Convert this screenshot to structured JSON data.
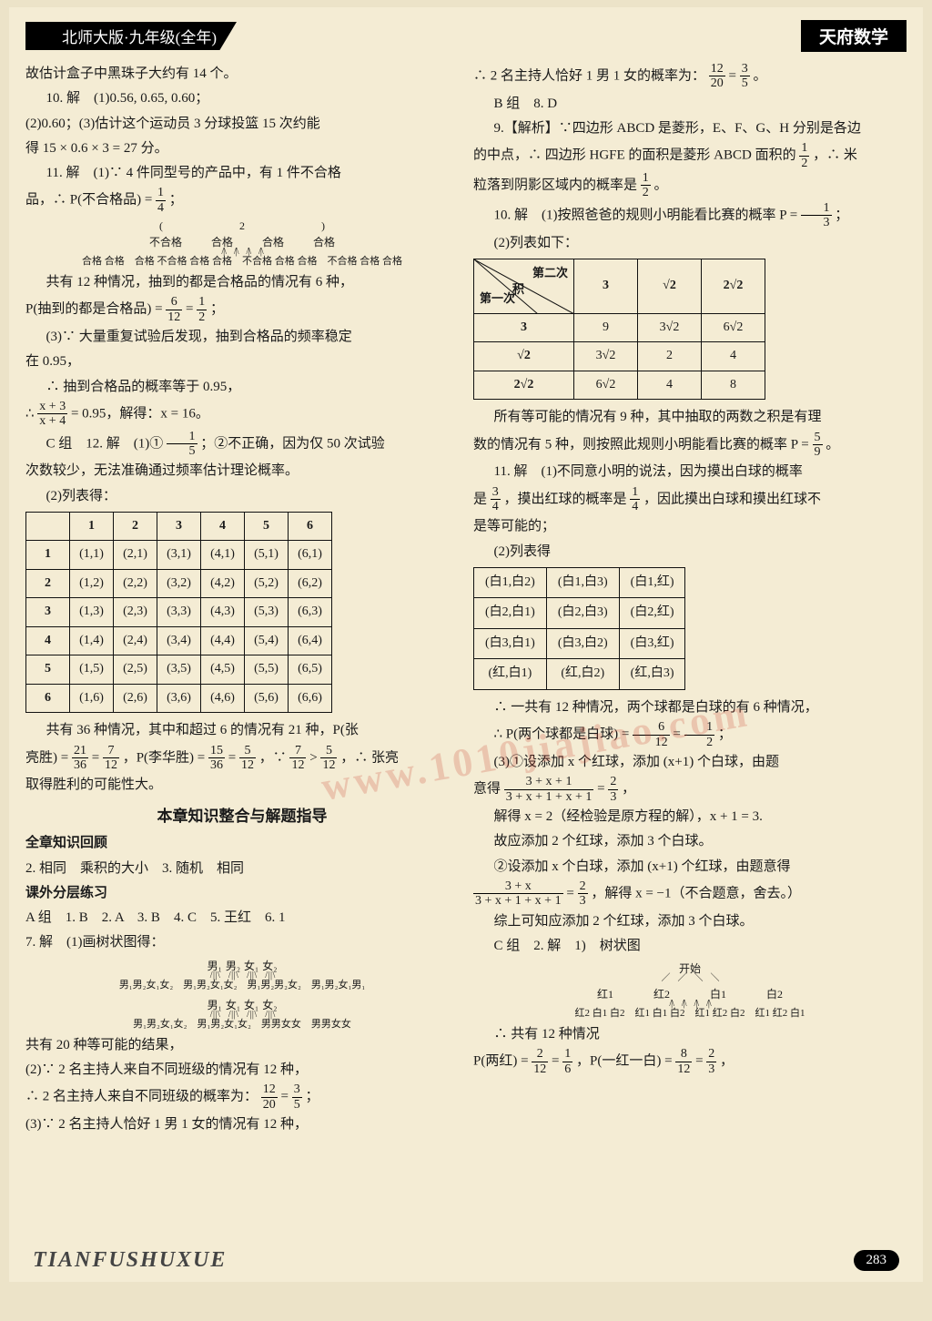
{
  "header": {
    "left": "北师大版·九年级(全年)",
    "right": "天府数学"
  },
  "footer": {
    "brand": "TIANFUSHUXUE",
    "page": "283"
  },
  "watermark": "www.1010jiajiao.com",
  "colors": {
    "page_bg": "#f4ecd4",
    "body_bg": "#ece3c8",
    "text": "#1a1a1a",
    "border": "#111111",
    "watermark": "rgba(200,60,40,0.22)"
  },
  "left": {
    "l1": "故估计盒子中黑珠子大约有 14 个。",
    "l2": "10. 解　(1)0.56, 0.65, 0.60；",
    "l3": "(2)0.60；(3)估计这个运动员 3 分球投篮 15 次约能",
    "l4": "得 15 × 0.6 × 3 = 27 分。",
    "l5": "11. 解　(1)∵ 4 件同型号的产品中，有 1 件不合格",
    "l6a": "品，∴ P(不合格品) = ",
    "l6frac": {
      "n": "1",
      "d": "4"
    },
    "l6b": "；",
    "tree1": {
      "root_cols": [
        "不合格",
        "合格",
        "合格",
        "合格"
      ],
      "leaf": "合格 合格　合格 不合格 合格 合格　不合格 合格 合格　不合格 合格 合格"
    },
    "l7": "共有 12 种情况，抽到的都是合格品的情况有 6 种，",
    "l8a": "P(抽到的都是合格品) = ",
    "l8f1": {
      "n": "6",
      "d": "12"
    },
    "l8m": " = ",
    "l8f2": {
      "n": "1",
      "d": "2"
    },
    "l8b": "；",
    "l9": "(3)∵ 大量重复试验后发现，抽到合格品的频率稳定",
    "l10": "在 0.95，",
    "l11": "∴ 抽到合格品的概率等于 0.95，",
    "l12a": "∴ ",
    "l12f": {
      "n": "x + 3",
      "d": "x + 4"
    },
    "l12b": " = 0.95，解得：x = 16。",
    "l13a": "C 组　12. 解　(1)① ",
    "l13f": {
      "n": "1",
      "d": "5"
    },
    "l13b": "；②不正确，因为仅 50 次试验",
    "l14": "次数较少，无法准确通过频率估计理论概率。",
    "l15": "(2)列表得：",
    "pair_table": {
      "headers": [
        "",
        "1",
        "2",
        "3",
        "4",
        "5",
        "6"
      ],
      "rows": [
        [
          "1",
          "(1,1)",
          "(2,1)",
          "(3,1)",
          "(4,1)",
          "(5,1)",
          "(6,1)"
        ],
        [
          "2",
          "(1,2)",
          "(2,2)",
          "(3,2)",
          "(4,2)",
          "(5,2)",
          "(6,2)"
        ],
        [
          "3",
          "(1,3)",
          "(2,3)",
          "(3,3)",
          "(4,3)",
          "(5,3)",
          "(6,3)"
        ],
        [
          "4",
          "(1,4)",
          "(2,4)",
          "(3,4)",
          "(4,4)",
          "(5,4)",
          "(6,4)"
        ],
        [
          "5",
          "(1,5)",
          "(2,5)",
          "(3,5)",
          "(4,5)",
          "(5,5)",
          "(6,5)"
        ],
        [
          "6",
          "(1,6)",
          "(2,6)",
          "(3,6)",
          "(4,6)",
          "(5,6)",
          "(6,6)"
        ]
      ]
    },
    "l16": "共有 36 种情况，其中和超过 6 的情况有 21 种，P(张",
    "l17a": "亮胜) = ",
    "l17f1": {
      "n": "21",
      "d": "36"
    },
    "l17m1": " = ",
    "l17f2": {
      "n": "7",
      "d": "12"
    },
    "l17m2": "，P(李华胜) = ",
    "l17f3": {
      "n": "15",
      "d": "36"
    },
    "l17m3": " = ",
    "l17f4": {
      "n": "5",
      "d": "12"
    },
    "l17m4": "，∵ ",
    "l17f5": {
      "n": "7",
      "d": "12"
    },
    "l17m5": " > ",
    "l17f6": {
      "n": "5",
      "d": "12"
    },
    "l17b": "，∴ 张亮",
    "l18": "取得胜利的可能性大。",
    "sec_title": "本章知识整合与解题指导",
    "sub1": "全章知识回顾",
    "l19": "2. 相同　乘积的大小　3. 随机　相同",
    "sub2": "课外分层练习",
    "l20": "A 组　1. B　2. A　3. B　4. C　5. 王红　6. 1",
    "l21": "7. 解　(1)画树状图得：",
    "tree2_label_top": "男₁",
    "tree2_row": [
      "男₂",
      "女₁",
      "女₁",
      "女₂"
    ],
    "tree2_leaf": "男₁男₂女₁女₂　男₁男₂女₁女₂　男₁男₂男₂女₂　男₁男₂女₁男₁",
    "tree3_label_top": "男₂",
    "tree3_row": [
      "男₁",
      "女₁",
      "女₁",
      "女₂"
    ],
    "tree3_leaf": "男₁男₂女₁女₂　男₁男₂女₁女₂　男男女女　男男女女",
    "l22": "共有 20 种等可能的结果，",
    "l23": "(2)∵ 2 名主持人来自不同班级的情况有 12 种，",
    "l24a": "∴ 2 名主持人来自不同班级的概率为：",
    "l24f1": {
      "n": "12",
      "d": "20"
    },
    "l24m": " = ",
    "l24f2": {
      "n": "3",
      "d": "5"
    },
    "l24b": "；",
    "l25": "(3)∵ 2 名主持人恰好 1 男 1 女的情况有 12 种，"
  },
  "right": {
    "r1a": "∴ 2 名主持人恰好 1 男 1 女的概率为：",
    "r1f1": {
      "n": "12",
      "d": "20"
    },
    "r1m": " = ",
    "r1f2": {
      "n": "3",
      "d": "5"
    },
    "r1b": "。",
    "r2": "B 组　8. D",
    "r3": "9.【解析】∵四边形 ABCD 是菱形，E、F、G、H 分别是各边",
    "r4a": "的中点，∴ 四边形 HGFE 的面积是菱形 ABCD 面积的 ",
    "r4f": {
      "n": "1",
      "d": "2"
    },
    "r4b": "，∴ 米",
    "r5a": "粒落到阴影区域内的概率是 ",
    "r5f": {
      "n": "1",
      "d": "2"
    },
    "r5b": "。",
    "r6a": "10. 解　(1)按照爸爸的规则小明能看比赛的概率 P = ",
    "r6f": {
      "n": "1",
      "d": "3"
    },
    "r6b": "；",
    "r7": "(2)列表如下：",
    "prod_table": {
      "diag": {
        "l1": "第二次",
        "lc": "积",
        "l2": "第一次"
      },
      "headers": [
        "3",
        "√2",
        "2√2"
      ],
      "rows": [
        [
          "3",
          "9",
          "3√2",
          "6√2"
        ],
        [
          "√2",
          "3√2",
          "2",
          "4"
        ],
        [
          "2√2",
          "6√2",
          "4",
          "8"
        ]
      ]
    },
    "r8": "所有等可能的情况有 9 种，其中抽取的两数之积是有理",
    "r9a": "数的情况有 5 种，则按照此规则小明能看比赛的概率 P = ",
    "r9f": {
      "n": "5",
      "d": "9"
    },
    "r9b": "。",
    "r10": "11. 解　(1)不同意小明的说法，因为摸出白球的概率",
    "r11a": "是 ",
    "r11f1": {
      "n": "3",
      "d": "4"
    },
    "r11m": "，摸出红球的概率是 ",
    "r11f2": {
      "n": "1",
      "d": "4"
    },
    "r11b": "，因此摸出白球和摸出红球不",
    "r12": "是等可能的；",
    "r13": "(2)列表得",
    "ball_table": {
      "rows": [
        [
          "(白1,白2)",
          "(白1,白3)",
          "(白1,红)"
        ],
        [
          "(白2,白1)",
          "(白2,白3)",
          "(白2,红)"
        ],
        [
          "(白3,白1)",
          "(白3,白2)",
          "(白3,红)"
        ],
        [
          "(红,白1)",
          "(红,白2)",
          "(红,白3)"
        ]
      ]
    },
    "r14": "∴ 一共有 12 种情况，两个球都是白球的有 6 种情况，",
    "r15a": "∴ P(两个球都是白球) = ",
    "r15f1": {
      "n": "6",
      "d": "12"
    },
    "r15m": " = ",
    "r15f2": {
      "n": "1",
      "d": "2"
    },
    "r15b": "；",
    "r16": "(3)①设添加 x 个红球，添加 (x+1) 个白球，由题",
    "r17a": "意得 ",
    "r17f": {
      "n": "3 + x + 1",
      "d": "3 + x + 1 + x + 1"
    },
    "r17m": " = ",
    "r17f2": {
      "n": "2",
      "d": "3"
    },
    "r17b": "，",
    "r18": "解得 x = 2（经检验是原方程的解），x + 1 = 3.",
    "r19": "故应添加 2 个红球，添加 3 个白球。",
    "r20": "②设添加 x 个白球，添加 (x+1) 个红球，由题意得",
    "r21a": "",
    "r21f": {
      "n": "3 + x",
      "d": "3 + x + 1 + x + 1"
    },
    "r21m": " = ",
    "r21f2": {
      "n": "2",
      "d": "3"
    },
    "r21b": "，解得 x = −1（不合题意，舍去。）",
    "r22": "综上可知应添加 2 个红球，添加 3 个白球。",
    "r23": "C 组　2. 解　1)　树状图",
    "tree4_root": "开始",
    "tree4_row1": [
      "红1",
      "红2",
      "白1",
      "白2"
    ],
    "tree4_row2": "红2 白1 白2　红1 白1 白2　红1 红2 白2　红1 红2 白1",
    "r24": "∴ 共有 12 种情况",
    "r25a": "P(两红) = ",
    "r25f1": {
      "n": "2",
      "d": "12"
    },
    "r25m1": " = ",
    "r25f2": {
      "n": "1",
      "d": "6"
    },
    "r25m2": "，P(一红一白) = ",
    "r25f3": {
      "n": "8",
      "d": "12"
    },
    "r25m3": " = ",
    "r25f4": {
      "n": "2",
      "d": "3"
    },
    "r25b": "，"
  }
}
